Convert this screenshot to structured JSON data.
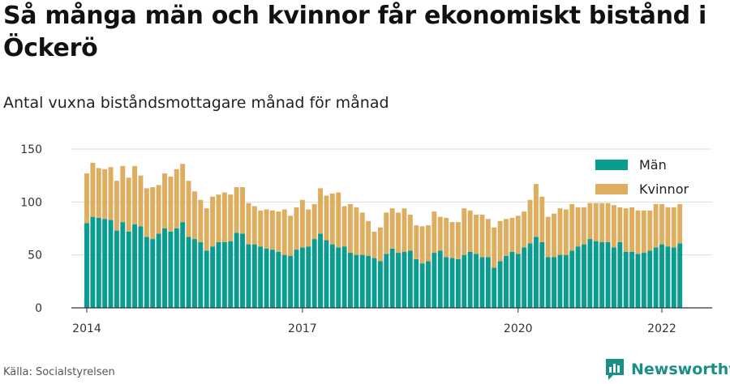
{
  "header": {
    "title": "Så många män och kvinnor får ekonomiskt bistånd i Öckerö",
    "subtitle": "Antal vuxna biståndsmottagare månad för månad"
  },
  "footer": {
    "source": "Källa: Socialstyrelsen",
    "brand": "Newsworthy",
    "brand_icon": "newsworthy-logo-icon"
  },
  "colors": {
    "men": "#0a9b91",
    "women": "#deae5e",
    "grid": "#dddddd",
    "axis": "#333333"
  },
  "chart_data": {
    "type": "bar",
    "stacked": true,
    "start_month": "2014-01",
    "ylim": [
      0,
      150
    ],
    "yticks": [
      0,
      50,
      100,
      150
    ],
    "xticks": [
      "2014",
      "2017",
      "2020",
      "2022"
    ],
    "grid": true,
    "legend_position": "top-right",
    "series": [
      {
        "name": "Män",
        "values": [
          80,
          86,
          85,
          84,
          83,
          73,
          81,
          72,
          79,
          77,
          67,
          65,
          70,
          75,
          72,
          75,
          81,
          67,
          65,
          62,
          54,
          58,
          62,
          62,
          63,
          71,
          70,
          60,
          60,
          58,
          56,
          55,
          53,
          50,
          49,
          55,
          57,
          58,
          65,
          70,
          64,
          60,
          57,
          58,
          52,
          50,
          50,
          49,
          47,
          44,
          51,
          56,
          52,
          53,
          54,
          46,
          42,
          44,
          52,
          54,
          48,
          47,
          46,
          50,
          53,
          51,
          48,
          48,
          38,
          44,
          49,
          53,
          51,
          57,
          61,
          67,
          62,
          48,
          48,
          50,
          50,
          54,
          58,
          60,
          65,
          63,
          62,
          62,
          57,
          62,
          53,
          53,
          51,
          52,
          54,
          57,
          60,
          58,
          57,
          61
        ]
      },
      {
        "name": "Kvinnor",
        "values": [
          47,
          51,
          47,
          47,
          50,
          47,
          53,
          51,
          55,
          48,
          46,
          49,
          46,
          52,
          52,
          56,
          55,
          53,
          45,
          40,
          40,
          47,
          45,
          47,
          44,
          43,
          44,
          39,
          36,
          34,
          37,
          37,
          38,
          43,
          38,
          40,
          45,
          35,
          33,
          43,
          42,
          48,
          52,
          38,
          46,
          45,
          40,
          33,
          25,
          32,
          39,
          38,
          38,
          41,
          34,
          32,
          35,
          34,
          39,
          32,
          37,
          34,
          35,
          44,
          39,
          37,
          40,
          36,
          38,
          38,
          35,
          32,
          36,
          34,
          41,
          50,
          43,
          38,
          41,
          44,
          43,
          44,
          37,
          35,
          34,
          36,
          37,
          37,
          40,
          33,
          41,
          42,
          41,
          40,
          38,
          41,
          38,
          37,
          38,
          37
        ]
      }
    ]
  }
}
